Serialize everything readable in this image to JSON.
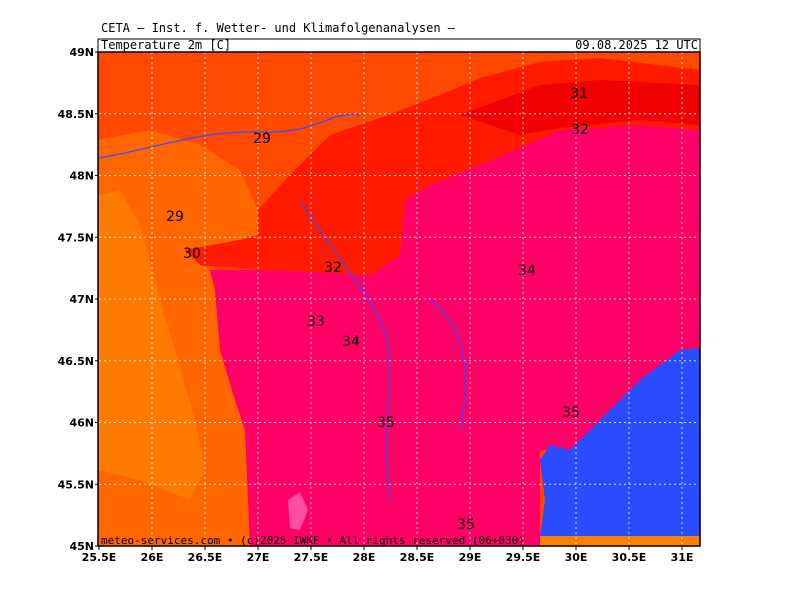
{
  "header": {
    "title": "CETA — Inst. f. Wetter- und Klimafolgenanalysen —",
    "field": "Temperature_2m [C]",
    "valid_time": "09.08.2025 12 UTC"
  },
  "axis": {
    "lon_labels": [
      "25.5E",
      "26E",
      "26.5E",
      "27E",
      "27.5E",
      "28E",
      "28.5E",
      "29E",
      "29.5E",
      "30E",
      "30.5E",
      "31E"
    ],
    "lat_labels": [
      "49N",
      "48.5N",
      "48N",
      "47.5N",
      "47N",
      "46.5N",
      "46N",
      "45.5N",
      "45N"
    ]
  },
  "contour_labels": [
    "31",
    "32",
    "29",
    "29",
    "30",
    "32",
    "34",
    "33",
    "34",
    "35",
    "35",
    "35"
  ],
  "footer": "meteo-services.com • (c)2025 IWKF • All rights reserved (06+030)"
}
